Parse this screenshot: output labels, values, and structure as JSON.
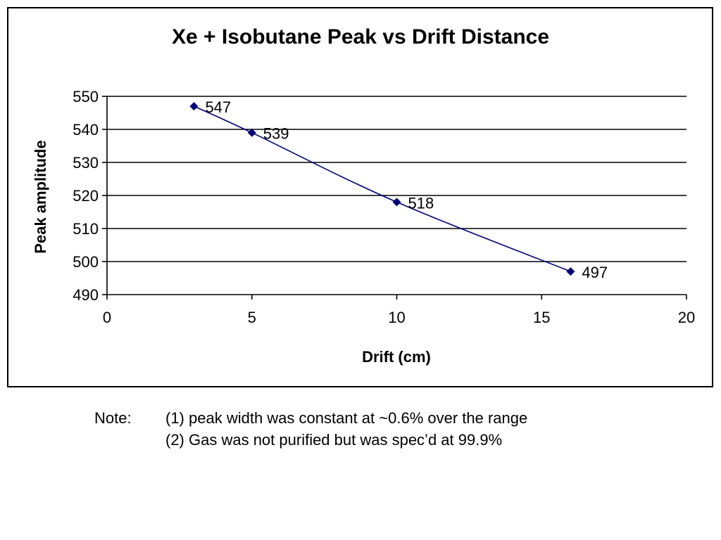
{
  "chart_data": {
    "type": "line",
    "title": "Xe + Isobutane Peak vs Drift Distance",
    "xlabel": "Drift (cm)",
    "ylabel": "Peak amplitude",
    "xlim": [
      0,
      20
    ],
    "ylim": [
      490,
      550
    ],
    "xticks": [
      0,
      5,
      10,
      15,
      20
    ],
    "yticks": [
      490,
      500,
      510,
      520,
      530,
      540,
      550
    ],
    "grid": "horizontal major gridlines",
    "legend": "none",
    "marker": "diamond",
    "line_style": "smoothed",
    "series": [
      {
        "x": [
          3,
          5,
          10,
          16
        ],
        "y": [
          547,
          539,
          518,
          497
        ],
        "labels": [
          "547",
          "539",
          "518",
          "497"
        ],
        "color": "#000080"
      }
    ]
  },
  "notes": {
    "prefix": "Note:",
    "lines": [
      "(1)  peak width was constant at ~0.6% over the range",
      "(2) Gas was not purified but was spec’d at 99.9%"
    ]
  }
}
